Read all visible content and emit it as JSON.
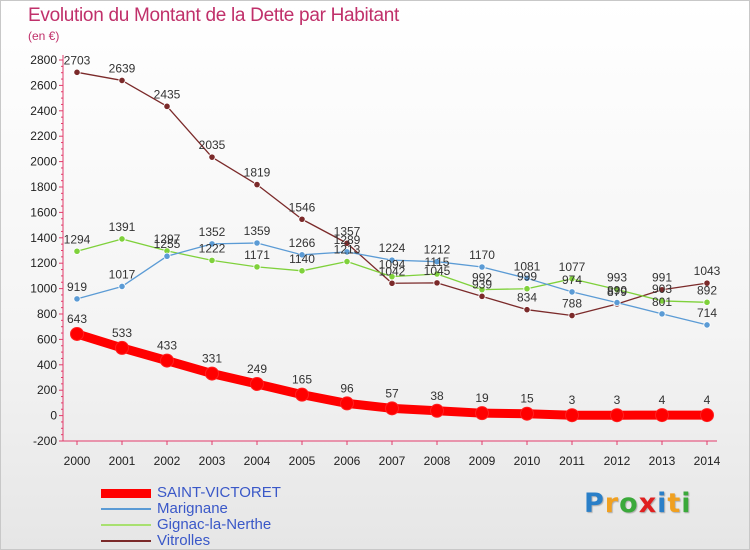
{
  "title": "Evolution du Montant de la Dette par Habitant",
  "unit_label": "(en €)",
  "logo": {
    "text": "Proxiti",
    "letters": [
      "P",
      "r",
      "o",
      "x",
      "i",
      "t",
      "i"
    ],
    "colors": [
      "#2a7fc8",
      "#f0a020",
      "#3aa93a",
      "#e02020",
      "#2a7fc8",
      "#f0a020",
      "#3aa93a"
    ]
  },
  "chart_data": {
    "type": "line",
    "title": "Evolution du Montant de la Dette par Habitant",
    "ylabel": "(en €)",
    "xlabel": "",
    "x": [
      "2000",
      "2001",
      "2002",
      "2003",
      "2004",
      "2005",
      "2006",
      "2007",
      "2008",
      "2009",
      "2010",
      "2011",
      "2012",
      "2013",
      "2014"
    ],
    "ylim": [
      -200,
      2800
    ],
    "yticks": [
      -200,
      0,
      200,
      400,
      600,
      800,
      1000,
      1200,
      1400,
      1600,
      1800,
      2000,
      2200,
      2400,
      2600,
      2800
    ],
    "grid": false,
    "legend_position": "bottom-left",
    "series": [
      {
        "name": "Vitrolles",
        "color": "#7b2a2a",
        "values": [
          2703,
          2639,
          2435,
          2035,
          1819,
          1546,
          1357,
          1042,
          1045,
          939,
          834,
          788,
          879,
          991,
          1043
        ],
        "labels": [
          "2703",
          "2639",
          "2435",
          "2035",
          "1819",
          "1546",
          "1357",
          "1042",
          "1045",
          "939",
          "834",
          "788",
          "879",
          "991",
          "1043"
        ]
      },
      {
        "name": "Gignac-la-Nerthe",
        "color": "#7fd13b",
        "values": [
          1294,
          1391,
          1297,
          1222,
          1171,
          1140,
          1213,
          1094,
          1115,
          992,
          999,
          1077,
          993,
          903,
          892
        ],
        "labels": [
          "1294",
          "1391",
          "1297",
          "1222",
          "1171",
          "1140",
          "1213",
          "1094",
          "1115",
          "992",
          "999",
          "1077",
          "993",
          "903",
          "892"
        ]
      },
      {
        "name": "Marignane",
        "color": "#5b9bd5",
        "values": [
          919,
          1017,
          1255,
          1352,
          1359,
          1266,
          1289,
          1224,
          1212,
          1170,
          1081,
          974,
          890,
          801,
          714
        ],
        "labels": [
          "919",
          "1017",
          "1255",
          "1352",
          "1359",
          "1266",
          "1289",
          "1224",
          "1212",
          "1170",
          "1081",
          "974",
          "890",
          "801",
          "714"
        ]
      },
      {
        "name": "SAINT-VICTORET",
        "color": "#ff0000",
        "values": [
          643,
          533,
          433,
          331,
          249,
          165,
          96,
          57,
          38,
          19,
          15,
          3,
          3,
          4,
          4
        ],
        "labels": [
          "643",
          "533",
          "433",
          "331",
          "249",
          "165",
          "96",
          "57",
          "38",
          "19",
          "15",
          "3",
          "3",
          "4",
          "4"
        ]
      }
    ]
  },
  "legend": [
    {
      "name": "SAINT-VICTORET",
      "color": "#ff0000",
      "thick": true
    },
    {
      "name": "Marignane",
      "color": "#5b9bd5",
      "thick": false
    },
    {
      "name": "Gignac-la-Nerthe",
      "color": "#a8e070",
      "thick": false
    },
    {
      "name": "Vitrolles",
      "color": "#7b2a2a",
      "thick": false
    }
  ]
}
